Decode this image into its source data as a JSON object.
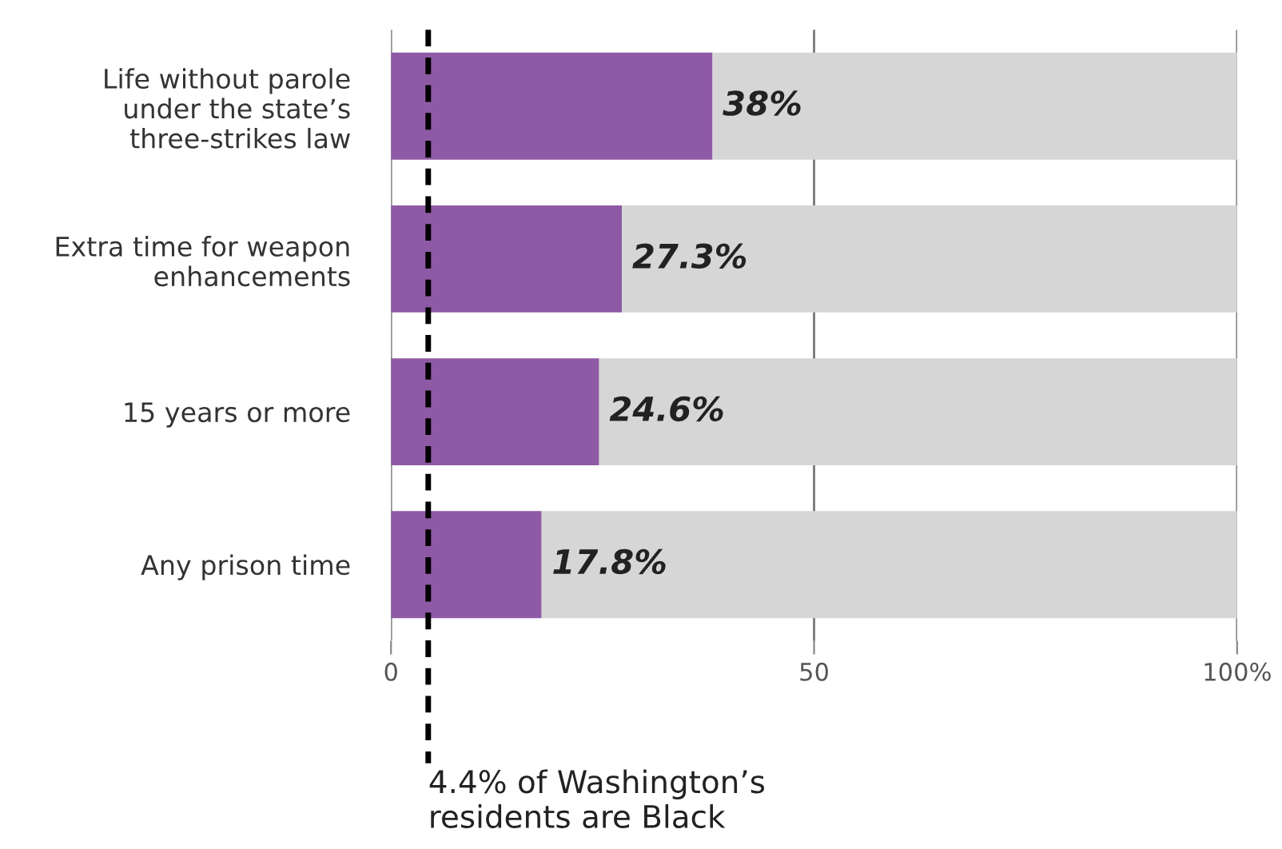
{
  "chart_data": {
    "type": "bar",
    "orientation": "horizontal",
    "stacked": true,
    "categories": [
      "Life without parole\nunder the state’s\nthree-strikes law",
      "Extra time for weapon\nenhancements",
      "15 years or more",
      "Any prison time"
    ],
    "series": [
      {
        "color": "#8f5aa5",
        "values": [
          38,
          27.3,
          24.6,
          17.8
        ],
        "value_labels": [
          "38%",
          "27.3%",
          "24.6%",
          "17.8%"
        ]
      },
      {
        "color": "#d6d6d6",
        "values": [
          62,
          72.7,
          75.4,
          82.2
        ]
      }
    ],
    "xlim": [
      0,
      100
    ],
    "xticks": [
      0,
      50,
      {
        "value": 100,
        "label": "100%"
      }
    ],
    "grid": "x",
    "ref_lines": [
      {
        "axis": "x",
        "value": 4.4,
        "label": "4.4% of Washington’s\nresidents are Black",
        "color": "#000000",
        "line_style": "dashed"
      }
    ]
  }
}
